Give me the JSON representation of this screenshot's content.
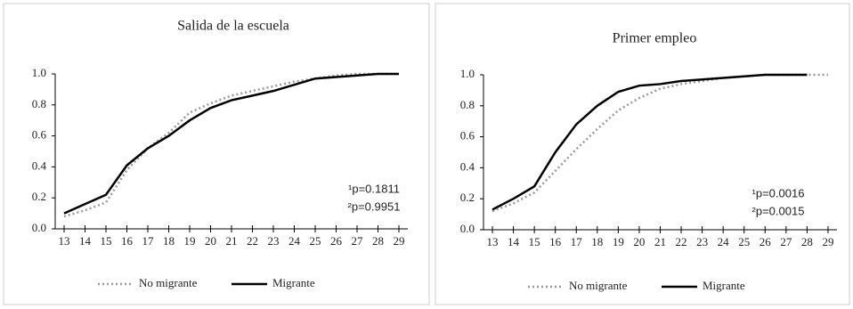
{
  "chart_data": [
    {
      "type": "line",
      "title": "Salida de la escuela",
      "categories": [
        13,
        14,
        15,
        16,
        17,
        18,
        19,
        20,
        21,
        22,
        23,
        24,
        25,
        26,
        27,
        28,
        29
      ],
      "series": [
        {
          "name": "No migrante",
          "color": "#9a9a9a",
          "style": "dotted",
          "values": [
            0.08,
            0.12,
            0.17,
            0.38,
            0.52,
            0.62,
            0.75,
            0.81,
            0.86,
            0.89,
            0.92,
            0.95,
            0.97,
            0.99,
            1.0,
            1.0,
            1.0
          ]
        },
        {
          "name": "Migrante",
          "color": "#000000",
          "style": "solid",
          "values": [
            0.1,
            0.16,
            0.22,
            0.41,
            0.52,
            0.6,
            0.7,
            0.78,
            0.83,
            0.86,
            0.89,
            0.93,
            0.97,
            0.98,
            0.99,
            1.0,
            1.0
          ]
        }
      ],
      "ylim": [
        0,
        1
      ],
      "yticks": [
        {
          "value": 0,
          "label": "0.0"
        },
        {
          "value": 0.2,
          "label": "0.2"
        },
        {
          "value": 0.4,
          "label": "0.4"
        },
        {
          "value": 0.6,
          "label": "0.6"
        },
        {
          "value": 0.8,
          "label": "0.8"
        },
        {
          "value": 1,
          "label": "1.0"
        }
      ],
      "annotations": [
        "¹p=0.1811",
        "²p=0.9951"
      ],
      "legend": "bottom"
    },
    {
      "type": "line",
      "title": "Primer empleo",
      "categories": [
        13,
        14,
        15,
        16,
        17,
        18,
        19,
        20,
        21,
        22,
        23,
        24,
        25,
        26,
        27,
        28,
        29
      ],
      "series": [
        {
          "name": "No migrante",
          "color": "#9a9a9a",
          "style": "dotted",
          "values": [
            0.12,
            0.17,
            0.24,
            0.38,
            0.52,
            0.65,
            0.77,
            0.85,
            0.91,
            0.94,
            0.96,
            0.98,
            0.99,
            1.0,
            1.0,
            1.0,
            1.0
          ]
        },
        {
          "name": "Migrante",
          "color": "#000000",
          "style": "solid",
          "values": [
            0.13,
            0.2,
            0.28,
            0.5,
            0.68,
            0.8,
            0.89,
            0.93,
            0.94,
            0.96,
            0.97,
            0.98,
            0.99,
            1.0,
            1.0,
            1.0,
            null
          ]
        }
      ],
      "ylim": [
        0,
        1
      ],
      "yticks": [
        {
          "value": 0,
          "label": "0.0"
        },
        {
          "value": 0.2,
          "label": "0.2"
        },
        {
          "value": 0.4,
          "label": "0.4"
        },
        {
          "value": 0.6,
          "label": "0.6"
        },
        {
          "value": 0.8,
          "label": "0.8"
        },
        {
          "value": 1,
          "label": "1.0"
        }
      ],
      "annotations": [
        "¹p=0.0016",
        "²p=0.0015"
      ],
      "legend": "bottom"
    }
  ]
}
